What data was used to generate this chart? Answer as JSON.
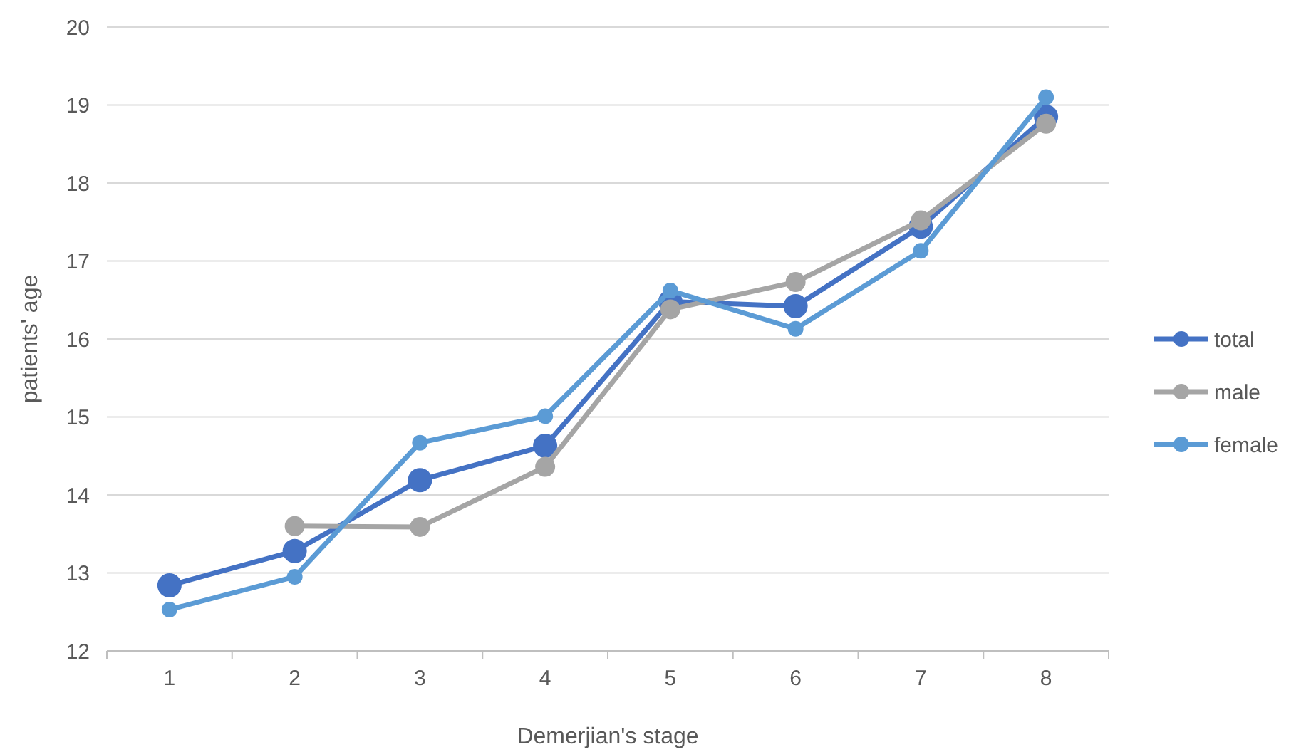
{
  "chart_data": {
    "type": "line",
    "xlabel": "Demerjian's stage",
    "ylabel": "patients' age",
    "categories": [
      "1",
      "2",
      "3",
      "4",
      "5",
      "6",
      "7",
      "8"
    ],
    "series": [
      {
        "name": "total",
        "color": "#4472c4",
        "values": [
          12.84,
          13.28,
          14.19,
          14.63,
          16.48,
          16.42,
          17.44,
          18.85
        ]
      },
      {
        "name": "male",
        "color": "#a5a5a5",
        "values": [
          null,
          13.6,
          13.59,
          14.36,
          16.38,
          16.73,
          17.52,
          18.76
        ]
      },
      {
        "name": "female",
        "color": "#5b9bd5",
        "values": [
          12.53,
          12.95,
          14.67,
          15.01,
          16.62,
          16.13,
          17.13,
          19.1
        ]
      }
    ],
    "ylim": [
      12,
      20
    ],
    "yticks": [
      12,
      13,
      14,
      15,
      16,
      17,
      18,
      19,
      20
    ],
    "grid": "y",
    "legend": "right",
    "marker": "circle",
    "line_style": "solid"
  }
}
